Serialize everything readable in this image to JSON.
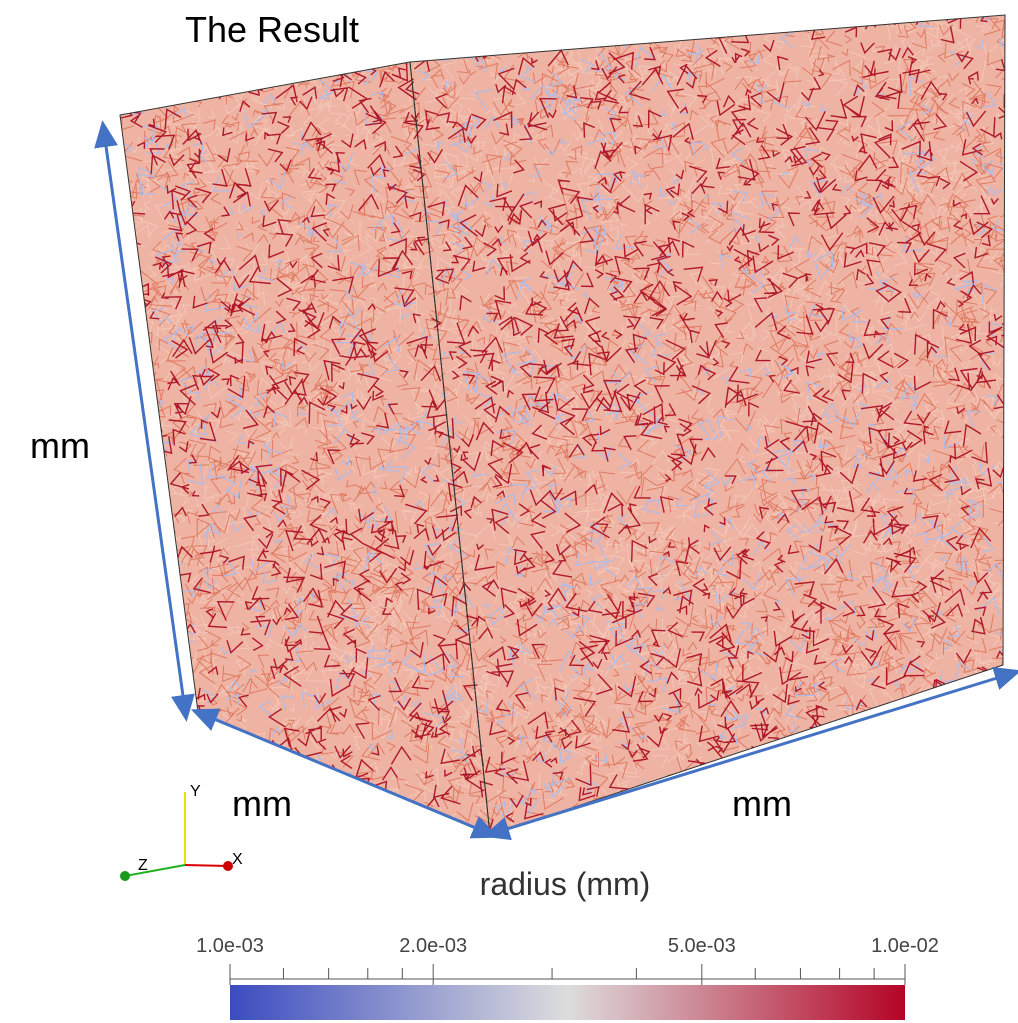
{
  "title": "The Result",
  "dimension_labels": {
    "height": "mm",
    "depth": "mm",
    "width": "mm"
  },
  "axes_triad": {
    "x": "X",
    "y": "Y",
    "z": "Z"
  },
  "colorbar": {
    "title": "radius (mm)",
    "scale": "log",
    "range": [
      0.001,
      0.01
    ],
    "ticks": [
      {
        "value": 0.001,
        "label": "1.0e-03"
      },
      {
        "value": 0.002,
        "label": "2.0e-03"
      },
      {
        "value": 0.005,
        "label": "5.0e-03"
      },
      {
        "value": 0.01,
        "label": "1.0e-02"
      }
    ],
    "minor_ticks": [
      0.0012,
      0.0014,
      0.0016,
      0.0018,
      0.003,
      0.004,
      0.006,
      0.007,
      0.008,
      0.009
    ],
    "colors": [
      "#3b4cc0",
      "#dddddd",
      "#b40426"
    ]
  }
}
